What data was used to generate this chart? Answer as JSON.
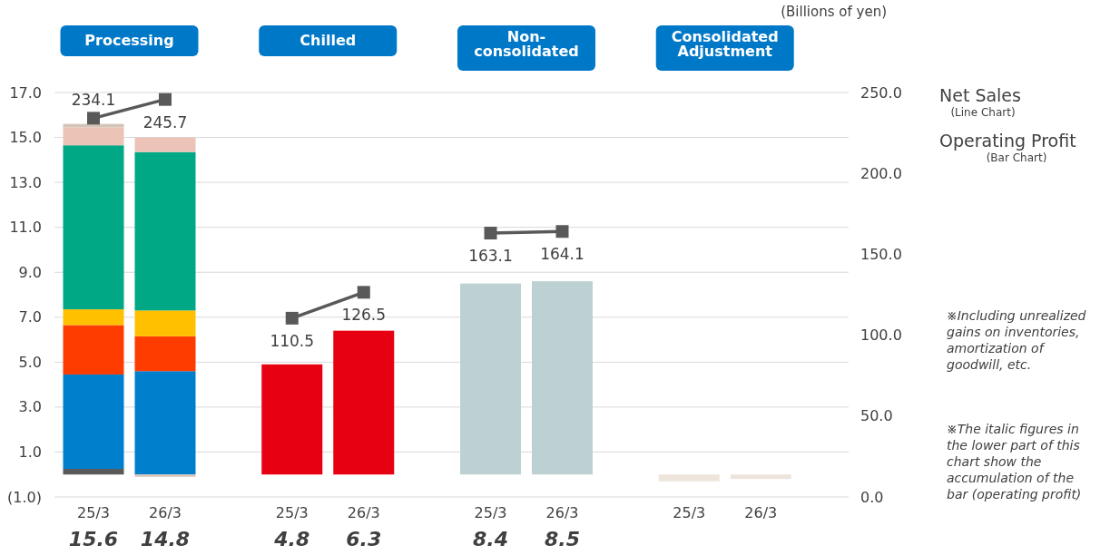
{
  "chart_data": {
    "type": "bar",
    "stacked": true,
    "grid": "y",
    "marker": "square",
    "y2label": "(Billions of yen)",
    "categories": [
      "25/3",
      "26/3",
      "25/3",
      "26/3",
      "25/3",
      "26/3",
      "25/3",
      "26/3"
    ],
    "ylim": [
      -1,
      17
    ],
    "yticks": [
      {
        "value": -1,
        "label": "(1.0)"
      },
      {
        "value": 1,
        "label": "1.0"
      },
      {
        "value": 3,
        "label": "3.0"
      },
      {
        "value": 5,
        "label": "5.0"
      },
      {
        "value": 7,
        "label": "7.0"
      },
      {
        "value": 9,
        "label": "9.0"
      },
      {
        "value": 11,
        "label": "11.0"
      },
      {
        "value": 13,
        "label": "13.0"
      },
      {
        "value": 15,
        "label": "15.0"
      },
      {
        "value": 17,
        "label": "17.0"
      }
    ],
    "y2lim": [
      0,
      250
    ],
    "y2ticks": [
      {
        "value": 0,
        "label": "0.0"
      },
      {
        "value": 50,
        "label": "50.0"
      },
      {
        "value": 100,
        "label": "100.0"
      },
      {
        "value": 150,
        "label": "150.0"
      },
      {
        "value": 200,
        "label": "200.0"
      },
      {
        "value": 250,
        "label": "250.0"
      }
    ],
    "series": [
      {
        "color": "#595959",
        "values": [
          0.25,
          null,
          null,
          null,
          null,
          null,
          null,
          null
        ]
      },
      {
        "color": "#0080cc",
        "values": [
          4.2,
          4.6,
          null,
          null,
          null,
          null,
          null,
          null
        ]
      },
      {
        "color": "#ff3c00",
        "values": [
          2.2,
          1.55,
          null,
          null,
          null,
          null,
          null,
          null
        ]
      },
      {
        "color": "#ffc000",
        "values": [
          0.7,
          1.15,
          null,
          null,
          null,
          null,
          null,
          null
        ]
      },
      {
        "color": "#00a886",
        "values": [
          7.3,
          7.05,
          null,
          null,
          null,
          null,
          null,
          null
        ]
      },
      {
        "color": "#ecc3b7",
        "values": [
          0.8,
          0.65,
          null,
          null,
          null,
          null,
          null,
          null
        ]
      },
      {
        "color": "#d5c3b8",
        "values": [
          0.15,
          -0.1,
          null,
          null,
          null,
          null,
          null,
          null
        ]
      },
      {
        "color": "#e60012",
        "values": [
          null,
          null,
          4.9,
          6.4,
          null,
          null,
          null,
          null
        ]
      },
      {
        "color": "#bdd1d3",
        "values": [
          null,
          null,
          null,
          null,
          8.5,
          8.6,
          null,
          null
        ]
      },
      {
        "color": "#ede5dc",
        "values": [
          null,
          null,
          null,
          null,
          null,
          null,
          -0.3,
          -0.2
        ]
      },
      {
        "type": "line",
        "axis": "y2",
        "color": "#595959",
        "values": [
          234.1,
          245.7,
          null,
          null,
          null,
          null,
          null,
          null
        ],
        "value_labels": [
          "234.1",
          "245.7",
          null,
          null,
          null,
          null,
          null,
          null
        ]
      },
      {
        "type": "line",
        "axis": "y2",
        "color": "#595959",
        "values": [
          null,
          null,
          110.5,
          126.5,
          null,
          null,
          null,
          null
        ],
        "value_labels": [
          null,
          null,
          "110.5",
          "126.5",
          null,
          null,
          null,
          null
        ]
      },
      {
        "type": "line",
        "axis": "y2",
        "color": "#595959",
        "values": [
          null,
          null,
          null,
          null,
          163.1,
          164.1,
          null,
          null
        ],
        "value_labels": [
          null,
          null,
          null,
          null,
          "163.1",
          "164.1",
          null,
          null
        ]
      }
    ],
    "totals": [
      "15.6",
      "14.8",
      "4.8",
      "6.3",
      "8.4",
      "8.5",
      null,
      null
    ],
    "annotations": [
      "Processing",
      "Chilled",
      "Non-consolidated",
      "Consolidated Adjustment",
      "Net Sales",
      "(Line Chart)",
      "Operating Profit",
      "(Bar Chart)",
      "※Including unrealized gains on inventories, amortization of goodwill, etc.",
      "※The italic figures in the lower part of this chart show the accumulation of the bar (operating profit)"
    ]
  }
}
